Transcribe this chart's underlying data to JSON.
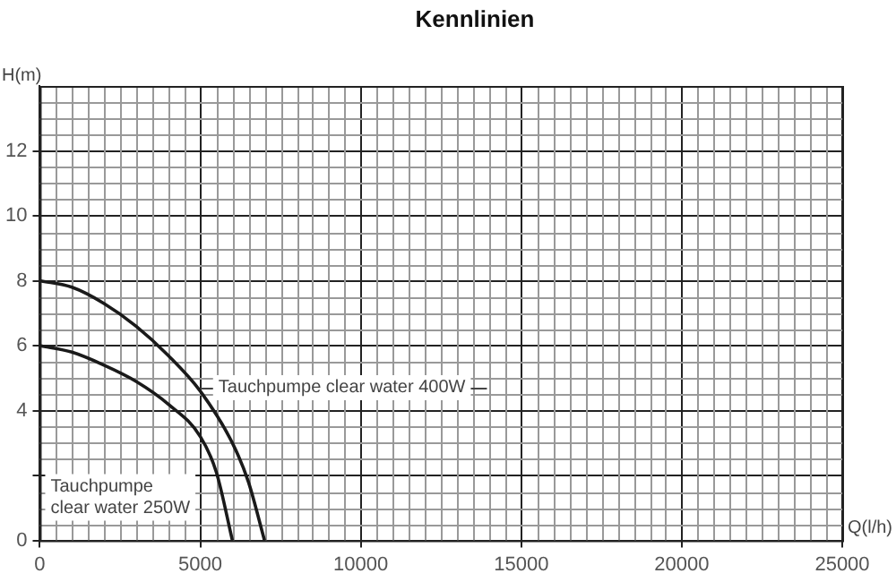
{
  "chart_data": {
    "type": "line",
    "title": "Kennlinien",
    "xlabel": "Q(l/h)",
    "ylabel": "H(m)",
    "xlim": [
      0,
      25000
    ],
    "xticks": [
      0,
      5000,
      10000,
      15000,
      20000,
      25000
    ],
    "ylim": [
      0,
      14
    ],
    "yticks": [
      0,
      {
        "value": 2,
        "label": null
      },
      4,
      6,
      8,
      10,
      12
    ],
    "grid": true,
    "legend": false,
    "marker": "none",
    "line_style": "solid",
    "series": [
      {
        "name": "Tauchpumpe clear water 400W",
        "color": "#1a1a1a",
        "x": [
          0,
          1000,
          2000,
          3000,
          4000,
          5000,
          6000,
          6500,
          7000
        ],
        "values": [
          8,
          7.8,
          7.3,
          6.6,
          5.7,
          4.6,
          3.0,
          1.8,
          0
        ]
      },
      {
        "name": "Tauchpumpe clear water 250W",
        "color": "#1a1a1a",
        "x": [
          0,
          1000,
          2000,
          3000,
          4000,
          5000,
          5500,
          6000
        ],
        "values": [
          6,
          5.8,
          5.4,
          4.9,
          4.2,
          3.2,
          2.1,
          0
        ]
      }
    ]
  }
}
